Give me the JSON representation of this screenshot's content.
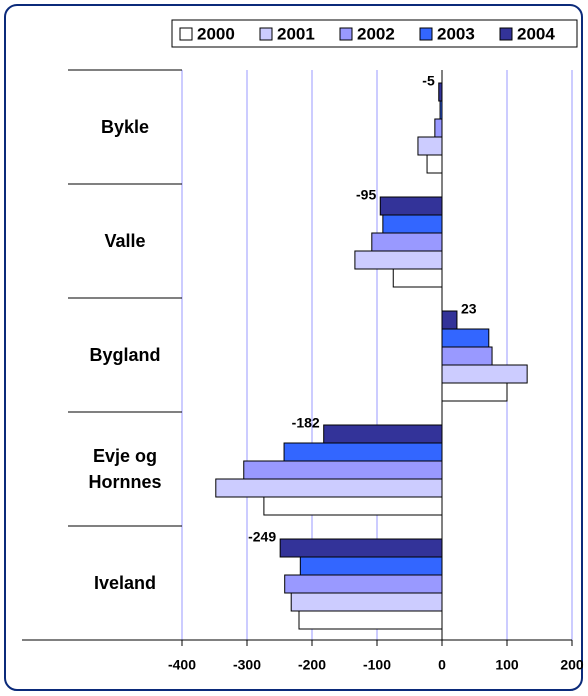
{
  "chart_data": {
    "type": "hbar",
    "categories": [
      "Bykle",
      "Valle",
      "Bygland",
      "Evje og Hornnes",
      "Iveland"
    ],
    "series": [
      {
        "name": "2000",
        "color": "#ffffff",
        "values": [
          -23,
          -75,
          100,
          -274,
          -220
        ]
      },
      {
        "name": "2001",
        "color": "#ccccff",
        "values": [
          -37,
          -134,
          131,
          -348,
          -232
        ]
      },
      {
        "name": "2002",
        "color": "#9999ff",
        "values": [
          -11,
          -108,
          77,
          -305,
          -242
        ]
      },
      {
        "name": "2003",
        "color": "#3366ff",
        "values": [
          -3,
          -91,
          72,
          -243,
          -218
        ]
      },
      {
        "name": "2004",
        "color": "#333399",
        "values": [
          -5,
          -95,
          23,
          -182,
          -249
        ],
        "data_labels": true
      }
    ],
    "xlim": [
      -400,
      200
    ],
    "xticks": [
      -400,
      -300,
      -200,
      -100,
      0,
      100,
      200
    ],
    "grid": true,
    "grid_color": "#9999ff",
    "legend": "top-right"
  }
}
